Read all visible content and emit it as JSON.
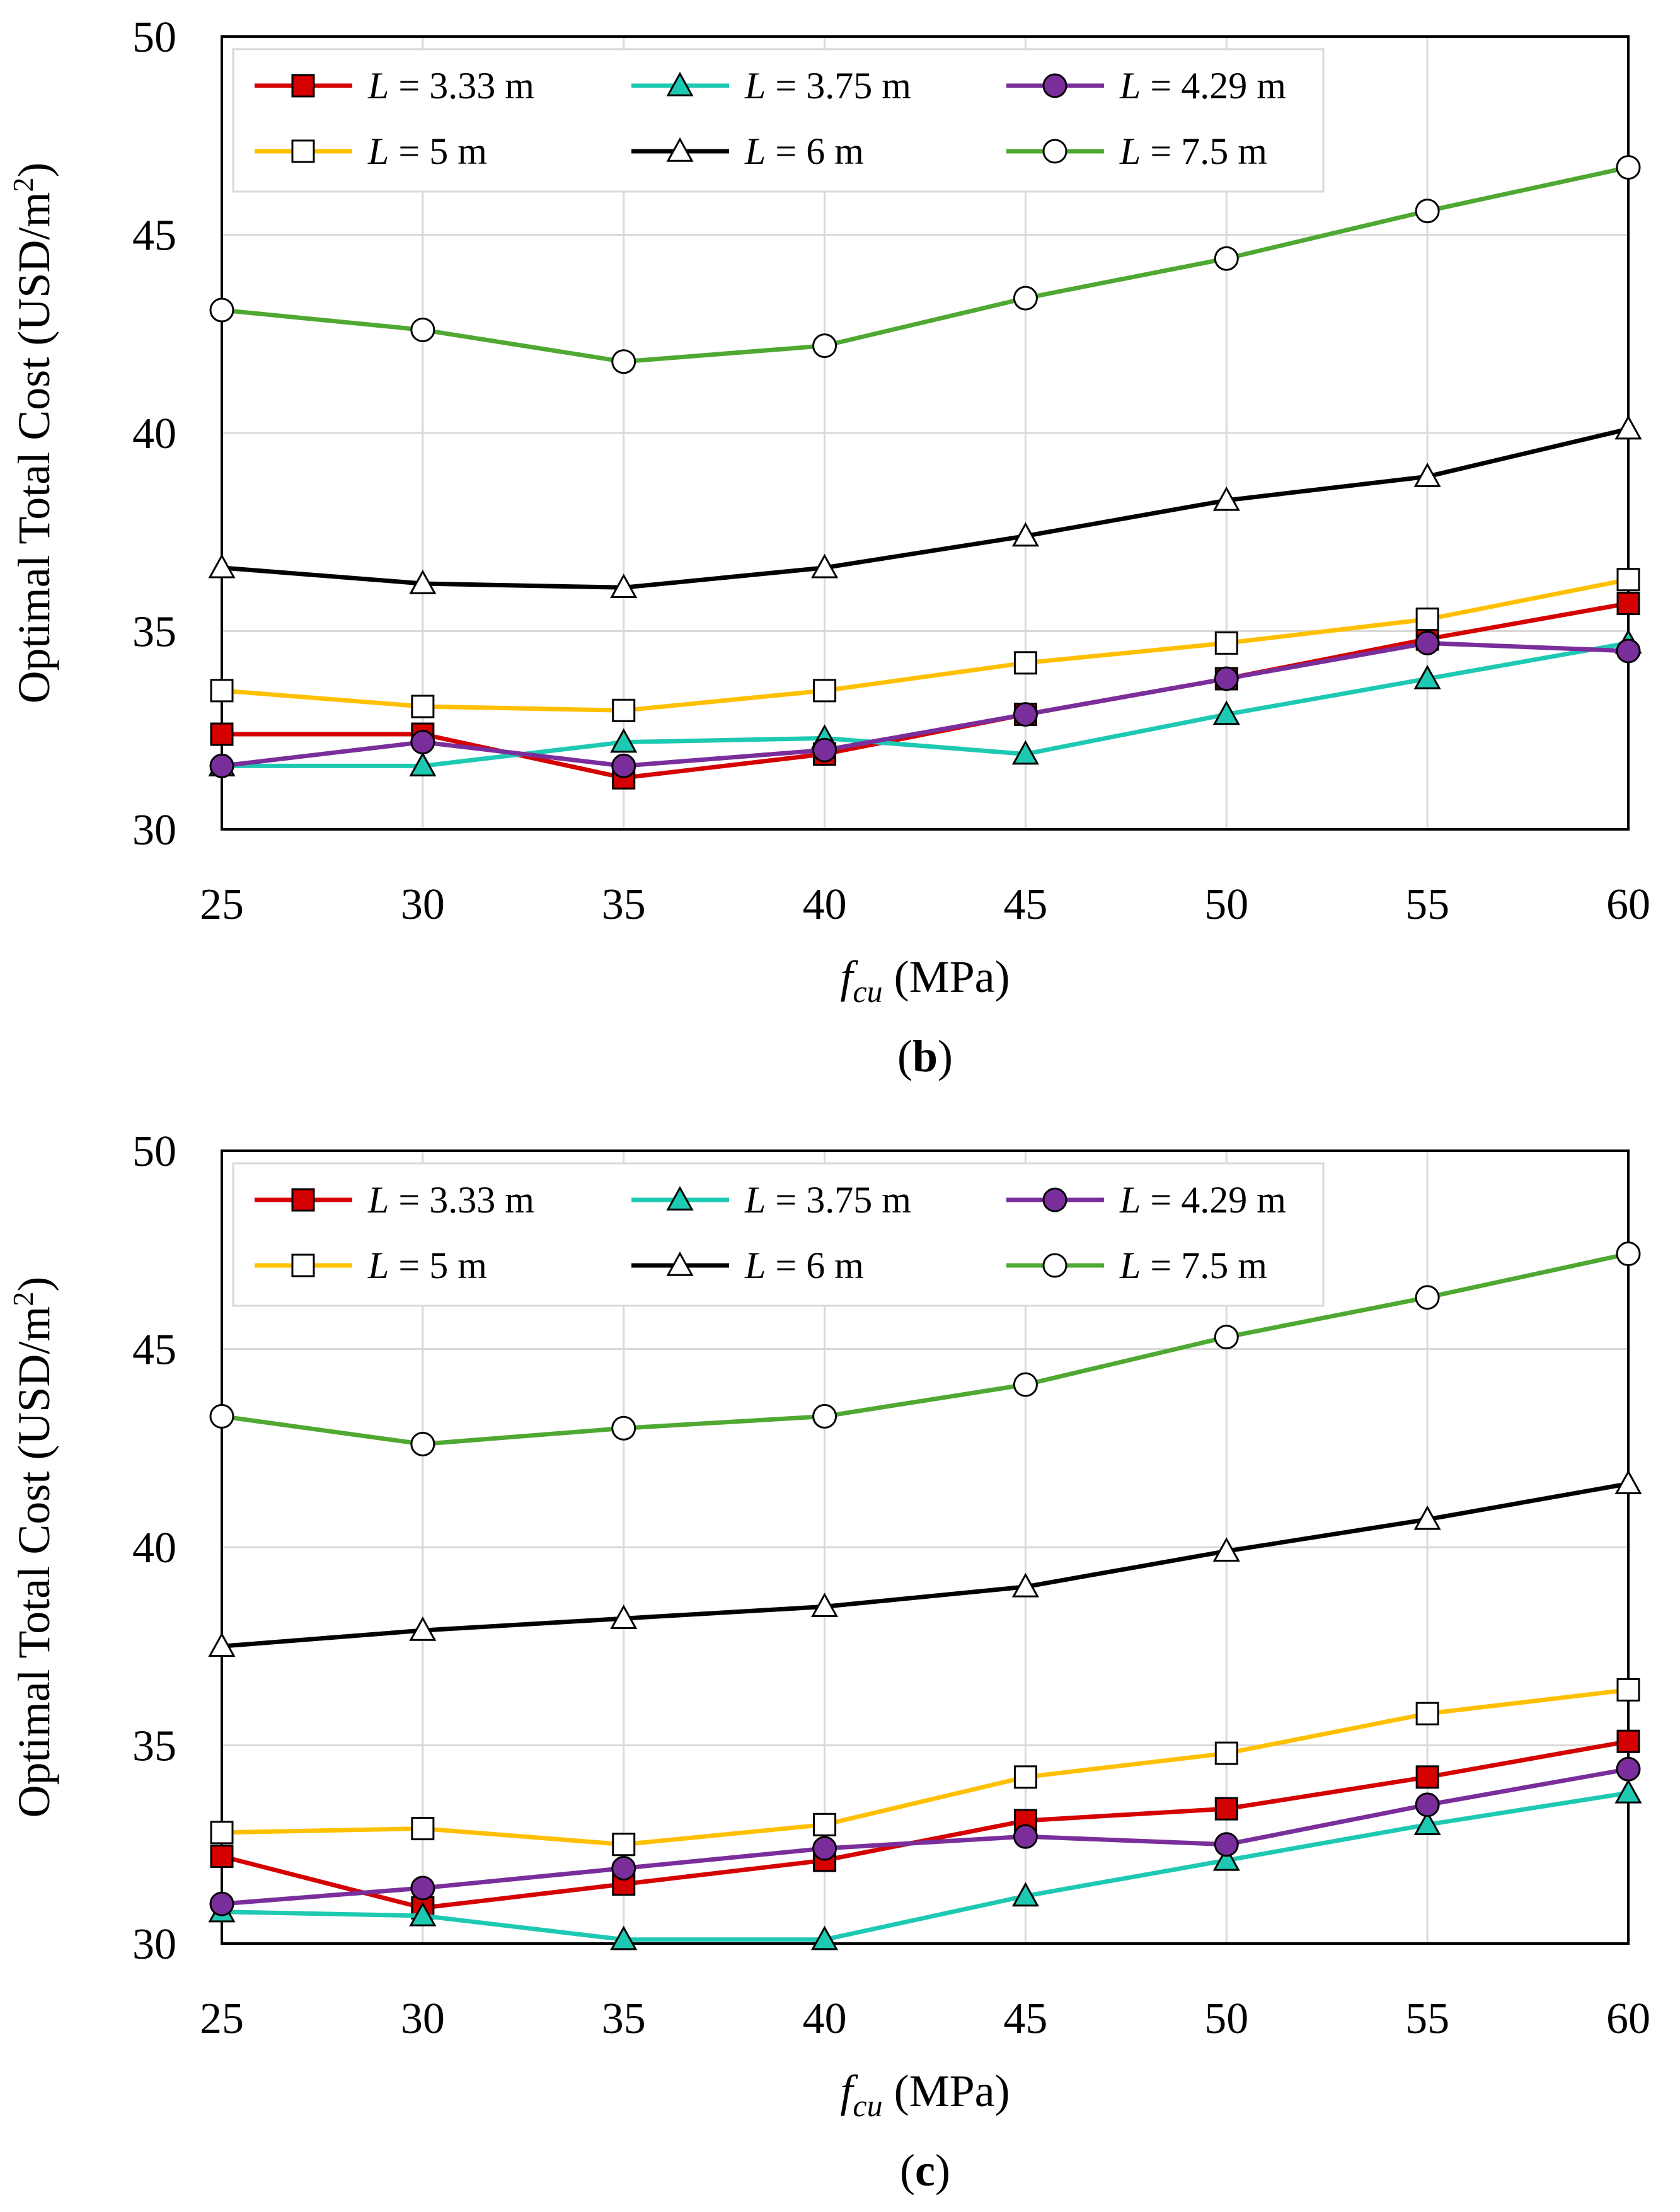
{
  "colors": {
    "L_3_33": "#d50000",
    "L_3_75": "#1ec9b3",
    "L_4_29": "#7a2e9b",
    "L_5": "#ffc000",
    "L_6": "#000000",
    "L_7_5": "#4fa832",
    "grid": "#d9d9d9",
    "axis": "#000000"
  },
  "chart_data": [
    {
      "type": "line",
      "panel_label": "b",
      "title": "",
      "xlabel": "f_cu (MPa)",
      "xlabel_main": "f",
      "xlabel_sub": "cu",
      "xlabel_unit": " (MPa)",
      "ylabel": "Optimal Total Cost (USD/m²)",
      "ylabel_main": "Optimal Total Cost (USD/m",
      "ylabel_sup": "2",
      "ylabel_end": ")",
      "xlim": [
        25,
        60
      ],
      "ylim": [
        30,
        50
      ],
      "x": [
        25,
        30,
        35,
        40,
        45,
        50,
        55,
        60
      ],
      "xticks": [
        "25",
        "30",
        "35",
        "40",
        "45",
        "50",
        "55",
        "60"
      ],
      "yticks": [
        "30",
        "35",
        "40",
        "45",
        "50"
      ],
      "grid": true,
      "legend_position": "top-left",
      "series": [
        {
          "name": "L = 3.33 m",
          "legend_var": "L",
          "legend_rest": " = 3.33 m",
          "marker": "square-filled",
          "color_key": "L_3_33",
          "values": [
            32.4,
            32.4,
            31.3,
            31.9,
            32.9,
            33.8,
            34.8,
            35.7
          ]
        },
        {
          "name": "L = 3.75 m",
          "legend_var": "L",
          "legend_rest": " = 3.75 m",
          "marker": "triangle-filled",
          "color_key": "L_3_75",
          "values": [
            31.6,
            31.6,
            32.2,
            32.3,
            31.9,
            32.9,
            33.8,
            34.7
          ]
        },
        {
          "name": "L = 4.29 m",
          "legend_var": "L",
          "legend_rest": " = 4.29 m",
          "marker": "circle-filled",
          "color_key": "L_4_29",
          "values": [
            31.6,
            32.2,
            31.6,
            32.0,
            32.9,
            33.8,
            34.7,
            34.5
          ]
        },
        {
          "name": "L = 5 m",
          "legend_var": "L",
          "legend_rest": " = 5 m",
          "marker": "square-open",
          "color_key": "L_5",
          "values": [
            33.5,
            33.1,
            33.0,
            33.5,
            34.2,
            34.7,
            35.3,
            36.3
          ]
        },
        {
          "name": "L = 6 m",
          "legend_var": "L",
          "legend_rest": " = 6 m",
          "marker": "triangle-open",
          "color_key": "L_6",
          "values": [
            36.6,
            36.2,
            36.1,
            36.6,
            37.4,
            38.3,
            38.9,
            40.1
          ]
        },
        {
          "name": "L = 7.5 m",
          "legend_var": "L",
          "legend_rest": " = 7.5 m",
          "marker": "circle-open",
          "color_key": "L_7_5",
          "values": [
            43.1,
            42.6,
            41.8,
            42.2,
            43.4,
            44.4,
            45.6,
            46.7
          ]
        }
      ]
    },
    {
      "type": "line",
      "panel_label": "c",
      "title": "",
      "xlabel": "f_cu (MPa)",
      "xlabel_main": "f",
      "xlabel_sub": "cu",
      "xlabel_unit": " (MPa)",
      "ylabel": "Optimal Total Cost (USD/m²)",
      "ylabel_main": "Optimal Total Cost (USD/m",
      "ylabel_sup": "2",
      "ylabel_end": ")",
      "xlim": [
        25,
        60
      ],
      "ylim": [
        30,
        50
      ],
      "x": [
        25,
        30,
        35,
        40,
        45,
        50,
        55,
        60
      ],
      "xticks": [
        "25",
        "30",
        "35",
        "40",
        "45",
        "50",
        "55",
        "60"
      ],
      "yticks": [
        "30",
        "35",
        "40",
        "45",
        "50"
      ],
      "grid": true,
      "legend_position": "top-left",
      "series": [
        {
          "name": "L = 3.33 m",
          "legend_var": "L",
          "legend_rest": " = 3.33 m",
          "marker": "square-filled",
          "color_key": "L_3_33",
          "values": [
            32.2,
            30.9,
            31.5,
            32.1,
            33.1,
            33.4,
            34.2,
            35.1
          ]
        },
        {
          "name": "L = 3.75 m",
          "legend_var": "L",
          "legend_rest": " = 3.75 m",
          "marker": "triangle-filled",
          "color_key": "L_3_75",
          "values": [
            30.8,
            30.7,
            30.1,
            30.1,
            31.2,
            32.1,
            33.0,
            33.8
          ]
        },
        {
          "name": "L = 4.29 m",
          "legend_var": "L",
          "legend_rest": " = 4.29 m",
          "marker": "circle-filled",
          "color_key": "L_4_29",
          "values": [
            31.0,
            31.4,
            31.9,
            32.4,
            32.7,
            32.5,
            33.5,
            34.4
          ]
        },
        {
          "name": "L = 5 m",
          "legend_var": "L",
          "legend_rest": " = 5 m",
          "marker": "square-open",
          "color_key": "L_5",
          "values": [
            32.8,
            32.9,
            32.5,
            33.0,
            34.2,
            34.8,
            35.8,
            36.4
          ]
        },
        {
          "name": "L = 6 m",
          "legend_var": "L",
          "legend_rest": " = 6 m",
          "marker": "triangle-open",
          "color_key": "L_6",
          "values": [
            37.5,
            37.9,
            38.2,
            38.5,
            39.0,
            39.9,
            40.7,
            41.6
          ]
        },
        {
          "name": "L = 7.5 m",
          "legend_var": "L",
          "legend_rest": " = 7.5 m",
          "marker": "circle-open",
          "color_key": "L_7_5",
          "values": [
            43.3,
            42.6,
            43.0,
            43.3,
            44.1,
            45.3,
            46.3,
            47.4
          ]
        }
      ]
    }
  ]
}
